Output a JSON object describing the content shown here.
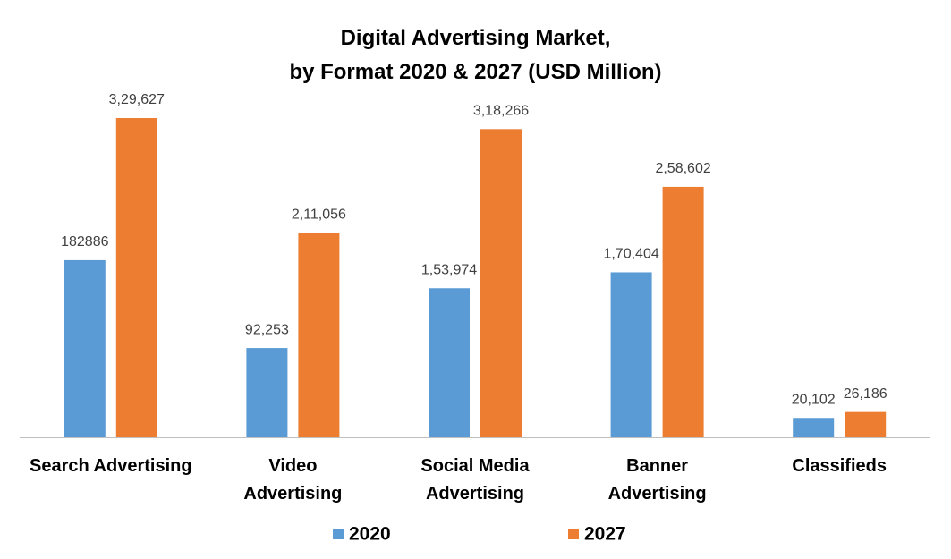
{
  "chart_data": {
    "type": "bar",
    "title": "Digital Advertising Market,\nby Format 2020 & 2027 (USD Million)",
    "categories": [
      "Search Advertising",
      "Video\nAdvertising",
      "Social Media\nAdvertising",
      "Banner\nAdvertising",
      "Classifieds"
    ],
    "series": [
      {
        "name": "2020",
        "color": "#5b9bd5",
        "values": [
          182886,
          92253,
          153974,
          170404,
          20102
        ],
        "value_labels": [
          "182886",
          "92,253",
          "1,53,974",
          "1,70,404",
          "20,102"
        ]
      },
      {
        "name": "2027",
        "color": "#ed7d31",
        "values": [
          329627,
          211056,
          318266,
          258602,
          26186
        ],
        "value_labels": [
          "3,29,627",
          "2,11,056",
          "3,18,266",
          "2,58,602",
          "26,186"
        ]
      }
    ],
    "legend": "bottom"
  }
}
